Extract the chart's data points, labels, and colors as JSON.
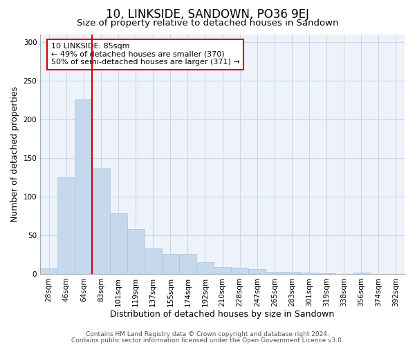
{
  "title": "10, LINKSIDE, SANDOWN, PO36 9EJ",
  "subtitle": "Size of property relative to detached houses in Sandown",
  "xlabel": "Distribution of detached houses by size in Sandown",
  "ylabel": "Number of detached properties",
  "categories": [
    "28sqm",
    "46sqm",
    "64sqm",
    "83sqm",
    "101sqm",
    "119sqm",
    "137sqm",
    "155sqm",
    "174sqm",
    "192sqm",
    "210sqm",
    "228sqm",
    "247sqm",
    "265sqm",
    "283sqm",
    "301sqm",
    "319sqm",
    "338sqm",
    "356sqm",
    "374sqm",
    "392sqm"
  ],
  "values": [
    7,
    125,
    226,
    137,
    79,
    58,
    33,
    26,
    26,
    15,
    9,
    8,
    6,
    3,
    3,
    2,
    1,
    0,
    2,
    0,
    0
  ],
  "bar_color": "#c5d8ed",
  "bar_edgecolor": "#a8c4de",
  "vline_color": "#cc0000",
  "vline_index": 3,
  "annotation_text": "10 LINKSIDE: 85sqm\n← 49% of detached houses are smaller (370)\n50% of semi-detached houses are larger (371) →",
  "annotation_box_edgecolor": "#cc0000",
  "annotation_box_facecolor": "#ffffff",
  "ylim": [
    0,
    310
  ],
  "yticks": [
    0,
    50,
    100,
    150,
    200,
    250,
    300
  ],
  "grid_color": "#c8d8ec",
  "background_color": "#ffffff",
  "plot_bg_color": "#eef3fa",
  "footer_line1": "Contains HM Land Registry data © Crown copyright and database right 2024.",
  "footer_line2": "Contains public sector information licensed under the Open Government Licence v3.0.",
  "title_fontsize": 12,
  "subtitle_fontsize": 9.5,
  "axis_label_fontsize": 9,
  "tick_fontsize": 7.5,
  "annotation_fontsize": 8,
  "footer_fontsize": 6.5
}
